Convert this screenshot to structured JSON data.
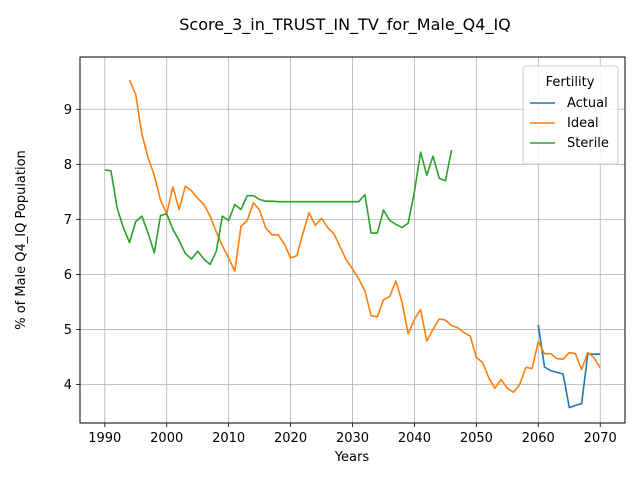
{
  "chart_data": {
    "type": "line",
    "title": "Score_3_in_TRUST_IN_TV_for_Male_Q4_IQ",
    "xlabel": "Years",
    "ylabel": "% of Male Q4_IQ Population",
    "xlim": [
      1986,
      2074
    ],
    "ylim": [
      3.3,
      9.95
    ],
    "xticks": [
      1990,
      2000,
      2010,
      2020,
      2030,
      2040,
      2050,
      2060,
      2070
    ],
    "yticks": [
      4,
      5,
      6,
      7,
      8,
      9
    ],
    "grid": true,
    "legend": {
      "title": "Fertility",
      "position": "top-right"
    },
    "series": [
      {
        "name": "Actual",
        "color": "#1f77b4",
        "x": [
          2060,
          2061,
          2062,
          2063,
          2064,
          2065,
          2066,
          2067,
          2068,
          2069,
          2070
        ],
        "y": [
          5.08,
          4.32,
          4.25,
          4.22,
          4.19,
          3.58,
          3.62,
          3.65,
          4.55,
          4.55,
          4.55
        ]
      },
      {
        "name": "Ideal",
        "color": "#ff7f0e",
        "x": [
          1994,
          1995,
          1996,
          1997,
          1998,
          1999,
          2000,
          2001,
          2002,
          2003,
          2004,
          2005,
          2006,
          2007,
          2008,
          2009,
          2010,
          2011,
          2012,
          2013,
          2014,
          2015,
          2016,
          2017,
          2018,
          2019,
          2020,
          2021,
          2022,
          2023,
          2024,
          2025,
          2026,
          2027,
          2028,
          2029,
          2030,
          2031,
          2032,
          2033,
          2034,
          2035,
          2036,
          2037,
          2038,
          2039,
          2040,
          2041,
          2042,
          2043,
          2044,
          2045,
          2046,
          2047,
          2048,
          2049,
          2050,
          2051,
          2052,
          2053,
          2054,
          2055,
          2056,
          2057,
          2058,
          2059,
          2060,
          2061,
          2062,
          2063,
          2064,
          2065,
          2066,
          2067,
          2068,
          2069,
          2070
        ],
        "y": [
          9.53,
          9.27,
          8.55,
          8.12,
          7.8,
          7.35,
          7.1,
          7.59,
          7.18,
          7.6,
          7.52,
          7.38,
          7.27,
          7.06,
          6.77,
          6.52,
          6.3,
          6.06,
          6.87,
          6.98,
          7.3,
          7.17,
          6.84,
          6.72,
          6.72,
          6.55,
          6.3,
          6.34,
          6.75,
          7.12,
          6.89,
          7.02,
          6.85,
          6.74,
          6.5,
          6.26,
          6.1,
          5.92,
          5.7,
          5.25,
          5.23,
          5.54,
          5.6,
          5.88,
          5.5,
          4.92,
          5.18,
          5.36,
          4.79,
          5.0,
          5.19,
          5.17,
          5.07,
          5.03,
          4.94,
          4.88,
          4.49,
          4.4,
          4.12,
          3.93,
          4.09,
          3.93,
          3.86,
          4.0,
          4.31,
          4.29,
          4.78,
          4.56,
          4.56,
          4.47,
          4.46,
          4.58,
          4.56,
          4.27,
          4.58,
          4.49,
          4.3
        ]
      },
      {
        "name": "Sterile",
        "color": "#2ca02c",
        "x": [
          1990,
          1991,
          1992,
          1993,
          1994,
          1995,
          1996,
          1997,
          1998,
          1999,
          2000,
          2001,
          2002,
          2003,
          2004,
          2005,
          2006,
          2007,
          2008,
          2009,
          2010,
          2011,
          2012,
          2013,
          2014,
          2015,
          2016,
          2017,
          2018,
          2019,
          2020,
          2021,
          2022,
          2023,
          2024,
          2025,
          2026,
          2027,
          2028,
          2029,
          2030,
          2031,
          2032,
          2033,
          2034,
          2035,
          2036,
          2037,
          2038,
          2039,
          2040,
          2041,
          2042,
          2043,
          2044,
          2045,
          2046
        ],
        "y": [
          7.9,
          7.88,
          7.2,
          6.85,
          6.58,
          6.96,
          7.06,
          6.75,
          6.39,
          7.07,
          7.1,
          6.82,
          6.62,
          6.38,
          6.28,
          6.42,
          6.28,
          6.18,
          6.42,
          7.06,
          6.98,
          7.27,
          7.18,
          7.43,
          7.43,
          7.36,
          7.33,
          7.33,
          7.32,
          7.32,
          7.32,
          7.32,
          7.32,
          7.32,
          7.32,
          7.32,
          7.32,
          7.32,
          7.32,
          7.32,
          7.32,
          7.32,
          7.45,
          6.75,
          6.75,
          7.17,
          6.98,
          6.91,
          6.85,
          6.93,
          7.5,
          8.22,
          7.8,
          8.15,
          7.75,
          7.7,
          8.26
        ]
      }
    ]
  }
}
